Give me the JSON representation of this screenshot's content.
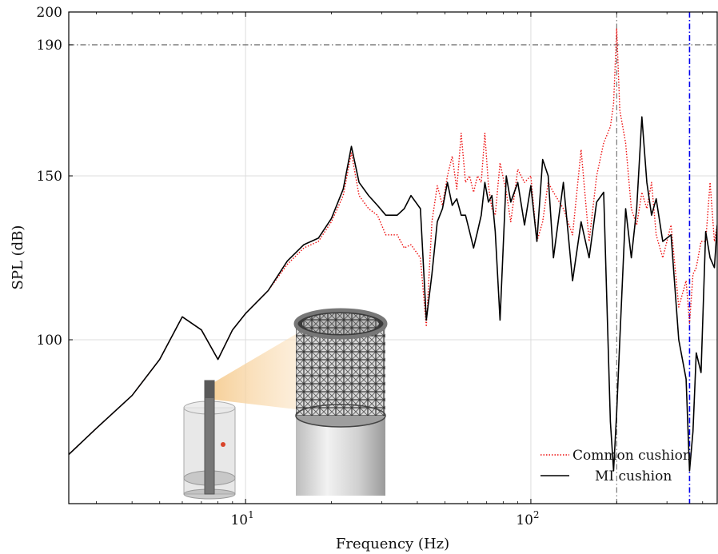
{
  "chart_data": {
    "type": "line",
    "xlabel": "Frequency (Hz)",
    "ylabel": "SPL (dB)",
    "xscale": "log",
    "xlim": [
      2.4,
      450
    ],
    "ylim": [
      50,
      200
    ],
    "grid": true,
    "x_ticks": [
      {
        "value": 10,
        "base": "10",
        "exp": "1"
      },
      {
        "value": 100,
        "base": "10",
        "exp": "2"
      }
    ],
    "y_ticks": [
      100,
      150,
      190,
      200
    ],
    "legend_position": "bottom-right",
    "reference_lines": [
      {
        "orientation": "horizontal",
        "value": 190,
        "color": "#666666",
        "style": "dash-dot"
      },
      {
        "orientation": "vertical",
        "value": 200,
        "color": "#777777",
        "style": "dash-dot"
      },
      {
        "orientation": "vertical",
        "value": 360,
        "color": "#0000ee",
        "style": "dash-dot"
      }
    ],
    "series": [
      {
        "name": "Common cushion",
        "color": "#ee1111",
        "style": "dotted",
        "points": [
          [
            2.4,
            65
          ],
          [
            3,
            73
          ],
          [
            4,
            83
          ],
          [
            5,
            94
          ],
          [
            6,
            107
          ],
          [
            7,
            103
          ],
          [
            8,
            94
          ],
          [
            9,
            103
          ],
          [
            10,
            108
          ],
          [
            12,
            115
          ],
          [
            14,
            123
          ],
          [
            16,
            128
          ],
          [
            18,
            130
          ],
          [
            20,
            136
          ],
          [
            22,
            144
          ],
          [
            23.5,
            157
          ],
          [
            25,
            144
          ],
          [
            27,
            140
          ],
          [
            29,
            138
          ],
          [
            31,
            132
          ],
          [
            34,
            132
          ],
          [
            36,
            128
          ],
          [
            38,
            129
          ],
          [
            41,
            125
          ],
          [
            43,
            104
          ],
          [
            45,
            136
          ],
          [
            47,
            147
          ],
          [
            49,
            141
          ],
          [
            51,
            150
          ],
          [
            53,
            156
          ],
          [
            55,
            146
          ],
          [
            57,
            163
          ],
          [
            59,
            148
          ],
          [
            61,
            150
          ],
          [
            63,
            145
          ],
          [
            65,
            150
          ],
          [
            67,
            148
          ],
          [
            69,
            163
          ],
          [
            71,
            147
          ],
          [
            73,
            140
          ],
          [
            75,
            138
          ],
          [
            78,
            154
          ],
          [
            82,
            145
          ],
          [
            85,
            136
          ],
          [
            90,
            152
          ],
          [
            95,
            148
          ],
          [
            100,
            150
          ],
          [
            105,
            130
          ],
          [
            110,
            136
          ],
          [
            115,
            148
          ],
          [
            120,
            145
          ],
          [
            130,
            140
          ],
          [
            140,
            132
          ],
          [
            150,
            158
          ],
          [
            160,
            130
          ],
          [
            170,
            150
          ],
          [
            180,
            160
          ],
          [
            190,
            165
          ],
          [
            195,
            172
          ],
          [
            200,
            195
          ],
          [
            205,
            170
          ],
          [
            215,
            160
          ],
          [
            225,
            140
          ],
          [
            235,
            135
          ],
          [
            245,
            145
          ],
          [
            255,
            140
          ],
          [
            265,
            148
          ],
          [
            275,
            132
          ],
          [
            290,
            125
          ],
          [
            310,
            135
          ],
          [
            330,
            110
          ],
          [
            350,
            118
          ],
          [
            360,
            105
          ],
          [
            370,
            120
          ],
          [
            380,
            122
          ],
          [
            395,
            130
          ],
          [
            410,
            130
          ],
          [
            425,
            148
          ],
          [
            440,
            130
          ],
          [
            450,
            135
          ]
        ]
      },
      {
        "name": "MI cushion",
        "color": "#000000",
        "style": "solid",
        "points": [
          [
            2.4,
            65
          ],
          [
            3,
            73
          ],
          [
            4,
            83
          ],
          [
            5,
            94
          ],
          [
            6,
            107
          ],
          [
            7,
            103
          ],
          [
            8,
            94
          ],
          [
            9,
            103
          ],
          [
            10,
            108
          ],
          [
            12,
            115
          ],
          [
            14,
            124
          ],
          [
            16,
            129
          ],
          [
            18,
            131
          ],
          [
            20,
            137
          ],
          [
            22,
            146
          ],
          [
            23.5,
            159
          ],
          [
            25,
            148
          ],
          [
            27,
            144
          ],
          [
            29,
            141
          ],
          [
            31,
            138
          ],
          [
            34,
            138
          ],
          [
            36,
            140
          ],
          [
            38,
            144
          ],
          [
            41,
            140
          ],
          [
            43,
            106
          ],
          [
            45,
            120
          ],
          [
            47,
            136
          ],
          [
            49,
            140
          ],
          [
            51,
            148
          ],
          [
            53,
            141
          ],
          [
            55,
            143
          ],
          [
            57,
            138
          ],
          [
            59,
            138
          ],
          [
            61,
            133
          ],
          [
            63,
            128
          ],
          [
            65,
            133
          ],
          [
            67,
            138
          ],
          [
            69,
            148
          ],
          [
            71,
            142
          ],
          [
            73,
            144
          ],
          [
            75,
            133
          ],
          [
            78,
            106
          ],
          [
            82,
            150
          ],
          [
            85,
            142
          ],
          [
            90,
            148
          ],
          [
            95,
            135
          ],
          [
            100,
            147
          ],
          [
            105,
            130
          ],
          [
            110,
            155
          ],
          [
            115,
            150
          ],
          [
            120,
            125
          ],
          [
            130,
            148
          ],
          [
            140,
            118
          ],
          [
            150,
            136
          ],
          [
            160,
            125
          ],
          [
            170,
            142
          ],
          [
            180,
            145
          ],
          [
            190,
            75
          ],
          [
            195,
            60
          ],
          [
            200,
            78
          ],
          [
            205,
            100
          ],
          [
            215,
            140
          ],
          [
            225,
            125
          ],
          [
            235,
            140
          ],
          [
            245,
            168
          ],
          [
            255,
            148
          ],
          [
            265,
            138
          ],
          [
            275,
            143
          ],
          [
            290,
            130
          ],
          [
            310,
            132
          ],
          [
            330,
            100
          ],
          [
            350,
            88
          ],
          [
            360,
            60
          ],
          [
            370,
            72
          ],
          [
            380,
            96
          ],
          [
            395,
            90
          ],
          [
            410,
            133
          ],
          [
            425,
            125
          ],
          [
            440,
            122
          ],
          [
            450,
            135
          ]
        ]
      }
    ]
  }
}
